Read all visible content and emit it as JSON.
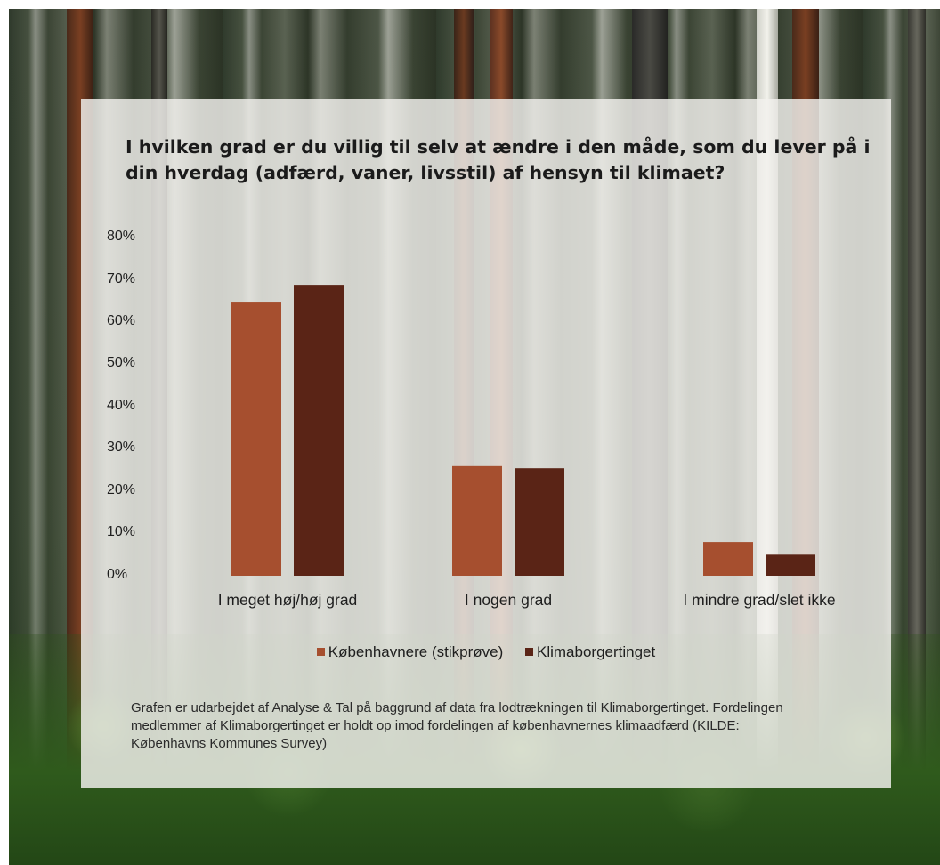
{
  "colors": {
    "series1": "#a64f2f",
    "series2": "#5a2416",
    "panel_bg": "#f2f1ed",
    "text": "#1e1e1e"
  },
  "chart_data": {
    "type": "bar",
    "title": "I hvilken grad er du villig til selv at ændre i den måde, som du lever på i din hverdag (adfærd, vaner, livsstil) af hensyn til klimaet?",
    "categories": [
      "I meget høj/høj grad",
      "I nogen grad",
      "I mindre grad/slet ikke"
    ],
    "series": [
      {
        "name": "Københavnere (stikprøve)",
        "values": [
          65,
          26,
          8
        ]
      },
      {
        "name": "Klimaborgertinget",
        "values": [
          69,
          25.5,
          5
        ]
      }
    ],
    "yticks": [
      "0%",
      "10%",
      "20%",
      "30%",
      "40%",
      "50%",
      "60%",
      "70%",
      "80%"
    ],
    "ylim": [
      0,
      80
    ],
    "grid": false,
    "legend_position": "bottom"
  },
  "footnote": "Grafen er udarbejdet af Analyse & Tal på baggrund  af data fra lodtrækningen til Klimaborgertinget. Fordelingen medlemmer af Klimaborgertinget er holdt op imod fordelingen af københavnernes klimaadfærd (KILDE: Københavns Kommunes Survey)"
}
